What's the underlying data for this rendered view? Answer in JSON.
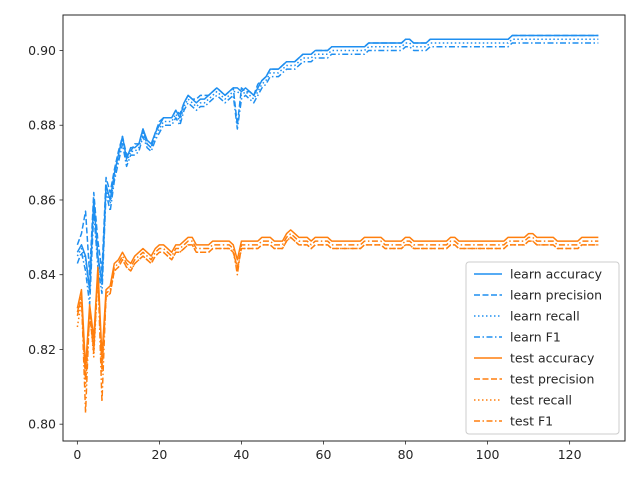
{
  "chart_data": {
    "type": "line",
    "title": "",
    "xlabel": "",
    "ylabel": "",
    "xlim": [
      -3.5,
      133.5
    ],
    "ylim": [
      0.7955,
      0.9095
    ],
    "xticks": [
      0,
      20,
      40,
      60,
      80,
      100,
      120
    ],
    "yticks": [
      0.8,
      0.82,
      0.84,
      0.86,
      0.88,
      0.9
    ],
    "x_range": [
      0,
      127
    ],
    "grid": false,
    "legend_position": "lower right",
    "colors": {
      "learn": "#1f8ff0",
      "test": "#ff7f0e",
      "axes": "#262626"
    },
    "series": [
      {
        "name": "learn accuracy",
        "group": "learn",
        "style": "solid",
        "values": [
          0.846,
          0.848,
          0.845,
          0.836,
          0.86,
          0.845,
          0.838,
          0.864,
          0.86,
          0.867,
          0.872,
          0.877,
          0.871,
          0.874,
          0.874,
          0.875,
          0.879,
          0.876,
          0.875,
          0.878,
          0.88,
          0.882,
          0.882,
          0.882,
          0.884,
          0.882,
          0.886,
          0.888,
          0.887,
          0.886,
          0.887,
          0.887,
          0.888,
          0.889,
          0.89,
          0.889,
          0.888,
          0.889,
          0.89,
          0.89,
          0.889,
          0.89,
          0.889,
          0.888,
          0.89,
          0.892,
          0.893,
          0.895,
          0.895,
          0.895,
          0.896,
          0.897,
          0.897,
          0.897,
          0.898,
          0.899,
          0.899,
          0.899,
          0.9,
          0.9,
          0.9,
          0.9,
          0.901,
          0.901,
          0.901,
          0.901,
          0.901,
          0.901,
          0.901,
          0.901,
          0.901,
          0.902,
          0.902,
          0.902,
          0.902,
          0.902,
          0.902,
          0.902,
          0.902,
          0.902,
          0.903,
          0.903,
          0.902,
          0.902,
          0.902,
          0.902,
          0.903,
          0.903,
          0.903,
          0.903,
          0.903,
          0.903,
          0.903,
          0.903,
          0.903,
          0.903,
          0.903,
          0.903,
          0.903,
          0.903,
          0.903,
          0.903,
          0.903,
          0.903,
          0.903,
          0.903,
          0.904,
          0.904,
          0.904,
          0.904,
          0.904,
          0.904,
          0.904,
          0.904,
          0.904,
          0.904,
          0.904,
          0.904,
          0.904,
          0.904,
          0.904,
          0.904,
          0.904,
          0.904,
          0.904,
          0.904,
          0.904,
          0.904
        ]
      },
      {
        "name": "learn precision",
        "group": "learn",
        "style": "dashed",
        "values": [
          0.848,
          0.851,
          0.857,
          0.84,
          0.862,
          0.849,
          0.841,
          0.866,
          0.862,
          0.868,
          0.873,
          0.877,
          0.872,
          0.873,
          0.875,
          0.875,
          0.879,
          0.875,
          0.874,
          0.878,
          0.881,
          0.882,
          0.882,
          0.882,
          0.884,
          0.883,
          0.886,
          0.888,
          0.887,
          0.887,
          0.888,
          0.888,
          0.888,
          0.889,
          0.89,
          0.889,
          0.888,
          0.889,
          0.89,
          0.88,
          0.89,
          0.889,
          0.889,
          0.888,
          0.891,
          0.892,
          0.893,
          0.895,
          0.895,
          0.895,
          0.896,
          0.897,
          0.897,
          0.897,
          0.898,
          0.899,
          0.899,
          0.899,
          0.9,
          0.9,
          0.9,
          0.9,
          0.901,
          0.901,
          0.901,
          0.901,
          0.901,
          0.901,
          0.901,
          0.901,
          0.901,
          0.902,
          0.902,
          0.902,
          0.902,
          0.902,
          0.902,
          0.902,
          0.902,
          0.902,
          0.903,
          0.903,
          0.902,
          0.902,
          0.902,
          0.902,
          0.903,
          0.903,
          0.903,
          0.903,
          0.903,
          0.903,
          0.903,
          0.903,
          0.903,
          0.903,
          0.903,
          0.903,
          0.903,
          0.903,
          0.903,
          0.903,
          0.903,
          0.903,
          0.903,
          0.903,
          0.904,
          0.904,
          0.904,
          0.904,
          0.904,
          0.904,
          0.904,
          0.904,
          0.904,
          0.904,
          0.904,
          0.904,
          0.904,
          0.904,
          0.904,
          0.904,
          0.904,
          0.904,
          0.904,
          0.904,
          0.904,
          0.904
        ]
      },
      {
        "name": "learn recall",
        "group": "learn",
        "style": "dotted",
        "values": [
          0.845,
          0.847,
          0.844,
          0.835,
          0.859,
          0.844,
          0.837,
          0.863,
          0.859,
          0.866,
          0.871,
          0.876,
          0.87,
          0.873,
          0.873,
          0.874,
          0.878,
          0.875,
          0.874,
          0.877,
          0.879,
          0.881,
          0.881,
          0.881,
          0.883,
          0.881,
          0.885,
          0.887,
          0.886,
          0.885,
          0.886,
          0.886,
          0.887,
          0.888,
          0.889,
          0.888,
          0.887,
          0.888,
          0.889,
          0.889,
          0.888,
          0.889,
          0.888,
          0.887,
          0.889,
          0.891,
          0.892,
          0.894,
          0.894,
          0.894,
          0.895,
          0.896,
          0.896,
          0.896,
          0.897,
          0.898,
          0.898,
          0.898,
          0.899,
          0.899,
          0.899,
          0.899,
          0.9,
          0.9,
          0.9,
          0.9,
          0.9,
          0.9,
          0.9,
          0.9,
          0.9,
          0.901,
          0.901,
          0.901,
          0.901,
          0.901,
          0.901,
          0.901,
          0.901,
          0.901,
          0.902,
          0.902,
          0.901,
          0.901,
          0.901,
          0.901,
          0.902,
          0.902,
          0.902,
          0.902,
          0.902,
          0.902,
          0.902,
          0.902,
          0.902,
          0.902,
          0.902,
          0.902,
          0.902,
          0.902,
          0.902,
          0.902,
          0.902,
          0.902,
          0.902,
          0.902,
          0.903,
          0.903,
          0.903,
          0.903,
          0.903,
          0.903,
          0.903,
          0.903,
          0.903,
          0.903,
          0.903,
          0.903,
          0.903,
          0.903,
          0.903,
          0.903,
          0.903,
          0.903,
          0.903,
          0.903,
          0.903,
          0.903
        ]
      },
      {
        "name": "learn F1",
        "group": "learn",
        "style": "dashdot",
        "values": [
          0.843,
          0.846,
          0.841,
          0.832,
          0.857,
          0.842,
          0.835,
          0.862,
          0.857,
          0.865,
          0.87,
          0.875,
          0.869,
          0.872,
          0.872,
          0.873,
          0.877,
          0.874,
          0.873,
          0.876,
          0.878,
          0.88,
          0.88,
          0.88,
          0.882,
          0.88,
          0.884,
          0.886,
          0.885,
          0.884,
          0.885,
          0.885,
          0.886,
          0.887,
          0.888,
          0.887,
          0.886,
          0.887,
          0.888,
          0.879,
          0.887,
          0.888,
          0.887,
          0.886,
          0.888,
          0.89,
          0.891,
          0.893,
          0.893,
          0.893,
          0.894,
          0.895,
          0.895,
          0.895,
          0.896,
          0.897,
          0.897,
          0.897,
          0.898,
          0.898,
          0.898,
          0.898,
          0.899,
          0.899,
          0.899,
          0.899,
          0.899,
          0.899,
          0.899,
          0.899,
          0.899,
          0.9,
          0.9,
          0.9,
          0.9,
          0.9,
          0.9,
          0.9,
          0.9,
          0.9,
          0.901,
          0.901,
          0.9,
          0.9,
          0.9,
          0.9,
          0.901,
          0.901,
          0.901,
          0.901,
          0.901,
          0.901,
          0.901,
          0.901,
          0.901,
          0.901,
          0.901,
          0.901,
          0.901,
          0.901,
          0.901,
          0.901,
          0.901,
          0.901,
          0.901,
          0.901,
          0.902,
          0.902,
          0.902,
          0.902,
          0.902,
          0.902,
          0.902,
          0.902,
          0.902,
          0.902,
          0.902,
          0.902,
          0.902,
          0.902,
          0.902,
          0.902,
          0.902,
          0.902,
          0.902,
          0.902,
          0.902,
          0.902
        ]
      },
      {
        "name": "test accuracy",
        "group": "test",
        "style": "solid",
        "values": [
          0.831,
          0.836,
          0.815,
          0.832,
          0.823,
          0.842,
          0.818,
          0.836,
          0.837,
          0.843,
          0.844,
          0.846,
          0.844,
          0.843,
          0.845,
          0.846,
          0.847,
          0.846,
          0.845,
          0.847,
          0.848,
          0.848,
          0.847,
          0.846,
          0.848,
          0.848,
          0.849,
          0.85,
          0.85,
          0.848,
          0.848,
          0.848,
          0.848,
          0.849,
          0.849,
          0.849,
          0.849,
          0.849,
          0.848,
          0.844,
          0.849,
          0.849,
          0.849,
          0.849,
          0.849,
          0.85,
          0.85,
          0.85,
          0.849,
          0.849,
          0.849,
          0.851,
          0.852,
          0.851,
          0.85,
          0.85,
          0.85,
          0.849,
          0.85,
          0.85,
          0.85,
          0.85,
          0.849,
          0.849,
          0.849,
          0.849,
          0.849,
          0.849,
          0.849,
          0.849,
          0.85,
          0.85,
          0.85,
          0.85,
          0.85,
          0.849,
          0.849,
          0.849,
          0.849,
          0.849,
          0.85,
          0.85,
          0.849,
          0.849,
          0.849,
          0.849,
          0.849,
          0.849,
          0.849,
          0.849,
          0.849,
          0.85,
          0.85,
          0.849,
          0.849,
          0.849,
          0.849,
          0.849,
          0.849,
          0.849,
          0.849,
          0.849,
          0.849,
          0.849,
          0.849,
          0.85,
          0.85,
          0.85,
          0.85,
          0.85,
          0.851,
          0.851,
          0.85,
          0.85,
          0.85,
          0.85,
          0.85,
          0.849,
          0.849,
          0.849,
          0.849,
          0.849,
          0.849,
          0.85,
          0.85,
          0.85,
          0.85,
          0.85
        ]
      },
      {
        "name": "test precision",
        "group": "test",
        "style": "dashed",
        "values": [
          0.829,
          0.834,
          0.812,
          0.829,
          0.82,
          0.84,
          0.815,
          0.834,
          0.835,
          0.841,
          0.842,
          0.844,
          0.842,
          0.841,
          0.843,
          0.844,
          0.845,
          0.844,
          0.843,
          0.845,
          0.846,
          0.846,
          0.845,
          0.844,
          0.846,
          0.846,
          0.847,
          0.848,
          0.848,
          0.846,
          0.846,
          0.846,
          0.846,
          0.847,
          0.847,
          0.847,
          0.847,
          0.847,
          0.846,
          0.842,
          0.847,
          0.847,
          0.847,
          0.847,
          0.847,
          0.848,
          0.848,
          0.848,
          0.847,
          0.847,
          0.847,
          0.849,
          0.85,
          0.849,
          0.848,
          0.848,
          0.848,
          0.847,
          0.848,
          0.848,
          0.848,
          0.848,
          0.847,
          0.847,
          0.847,
          0.847,
          0.847,
          0.847,
          0.847,
          0.847,
          0.848,
          0.848,
          0.848,
          0.848,
          0.848,
          0.847,
          0.847,
          0.847,
          0.847,
          0.847,
          0.848,
          0.848,
          0.847,
          0.847,
          0.847,
          0.847,
          0.847,
          0.847,
          0.847,
          0.847,
          0.847,
          0.848,
          0.848,
          0.847,
          0.847,
          0.847,
          0.847,
          0.847,
          0.847,
          0.847,
          0.847,
          0.847,
          0.847,
          0.847,
          0.847,
          0.848,
          0.848,
          0.848,
          0.848,
          0.848,
          0.849,
          0.849,
          0.848,
          0.848,
          0.848,
          0.848,
          0.848,
          0.847,
          0.847,
          0.847,
          0.847,
          0.847,
          0.847,
          0.848,
          0.848,
          0.848,
          0.848,
          0.848
        ]
      },
      {
        "name": "test recall",
        "group": "test",
        "style": "dotted",
        "values": [
          0.826,
          0.833,
          0.81,
          0.83,
          0.818,
          0.84,
          0.814,
          0.834,
          0.835,
          0.841,
          0.842,
          0.844,
          0.842,
          0.841,
          0.843,
          0.844,
          0.845,
          0.844,
          0.843,
          0.845,
          0.846,
          0.846,
          0.845,
          0.844,
          0.846,
          0.846,
          0.847,
          0.848,
          0.848,
          0.846,
          0.846,
          0.846,
          0.846,
          0.847,
          0.847,
          0.847,
          0.847,
          0.847,
          0.846,
          0.841,
          0.847,
          0.847,
          0.847,
          0.847,
          0.847,
          0.848,
          0.848,
          0.848,
          0.847,
          0.847,
          0.847,
          0.849,
          0.85,
          0.849,
          0.848,
          0.848,
          0.848,
          0.847,
          0.848,
          0.848,
          0.848,
          0.848,
          0.847,
          0.847,
          0.847,
          0.847,
          0.847,
          0.847,
          0.847,
          0.847,
          0.848,
          0.848,
          0.848,
          0.848,
          0.848,
          0.847,
          0.847,
          0.847,
          0.847,
          0.847,
          0.848,
          0.848,
          0.847,
          0.847,
          0.847,
          0.847,
          0.847,
          0.847,
          0.847,
          0.847,
          0.847,
          0.848,
          0.848,
          0.847,
          0.847,
          0.847,
          0.847,
          0.847,
          0.847,
          0.847,
          0.847,
          0.847,
          0.847,
          0.847,
          0.847,
          0.848,
          0.848,
          0.848,
          0.848,
          0.848,
          0.849,
          0.849,
          0.848,
          0.848,
          0.848,
          0.848,
          0.848,
          0.847,
          0.847,
          0.847,
          0.847,
          0.847,
          0.847,
          0.848,
          0.848,
          0.848,
          0.848,
          0.848
        ]
      },
      {
        "name": "test F1",
        "group": "test",
        "style": "dashdot",
        "values": [
          0.83,
          0.834,
          0.803,
          0.831,
          0.819,
          0.841,
          0.806,
          0.835,
          0.836,
          0.842,
          0.843,
          0.845,
          0.843,
          0.842,
          0.844,
          0.845,
          0.846,
          0.845,
          0.844,
          0.846,
          0.847,
          0.847,
          0.846,
          0.845,
          0.847,
          0.847,
          0.848,
          0.849,
          0.849,
          0.847,
          0.847,
          0.847,
          0.847,
          0.848,
          0.848,
          0.848,
          0.848,
          0.848,
          0.847,
          0.84,
          0.848,
          0.848,
          0.848,
          0.848,
          0.848,
          0.849,
          0.849,
          0.849,
          0.848,
          0.848,
          0.848,
          0.85,
          0.851,
          0.85,
          0.849,
          0.849,
          0.849,
          0.848,
          0.849,
          0.849,
          0.849,
          0.849,
          0.848,
          0.848,
          0.848,
          0.848,
          0.848,
          0.848,
          0.848,
          0.848,
          0.849,
          0.849,
          0.849,
          0.849,
          0.849,
          0.848,
          0.848,
          0.848,
          0.848,
          0.848,
          0.849,
          0.849,
          0.848,
          0.848,
          0.848,
          0.848,
          0.848,
          0.848,
          0.848,
          0.848,
          0.848,
          0.849,
          0.849,
          0.848,
          0.848,
          0.848,
          0.848,
          0.848,
          0.848,
          0.848,
          0.848,
          0.848,
          0.848,
          0.848,
          0.848,
          0.849,
          0.849,
          0.849,
          0.849,
          0.849,
          0.85,
          0.85,
          0.849,
          0.849,
          0.849,
          0.849,
          0.849,
          0.848,
          0.848,
          0.848,
          0.848,
          0.848,
          0.848,
          0.849,
          0.849,
          0.849,
          0.849,
          0.849
        ]
      }
    ]
  }
}
